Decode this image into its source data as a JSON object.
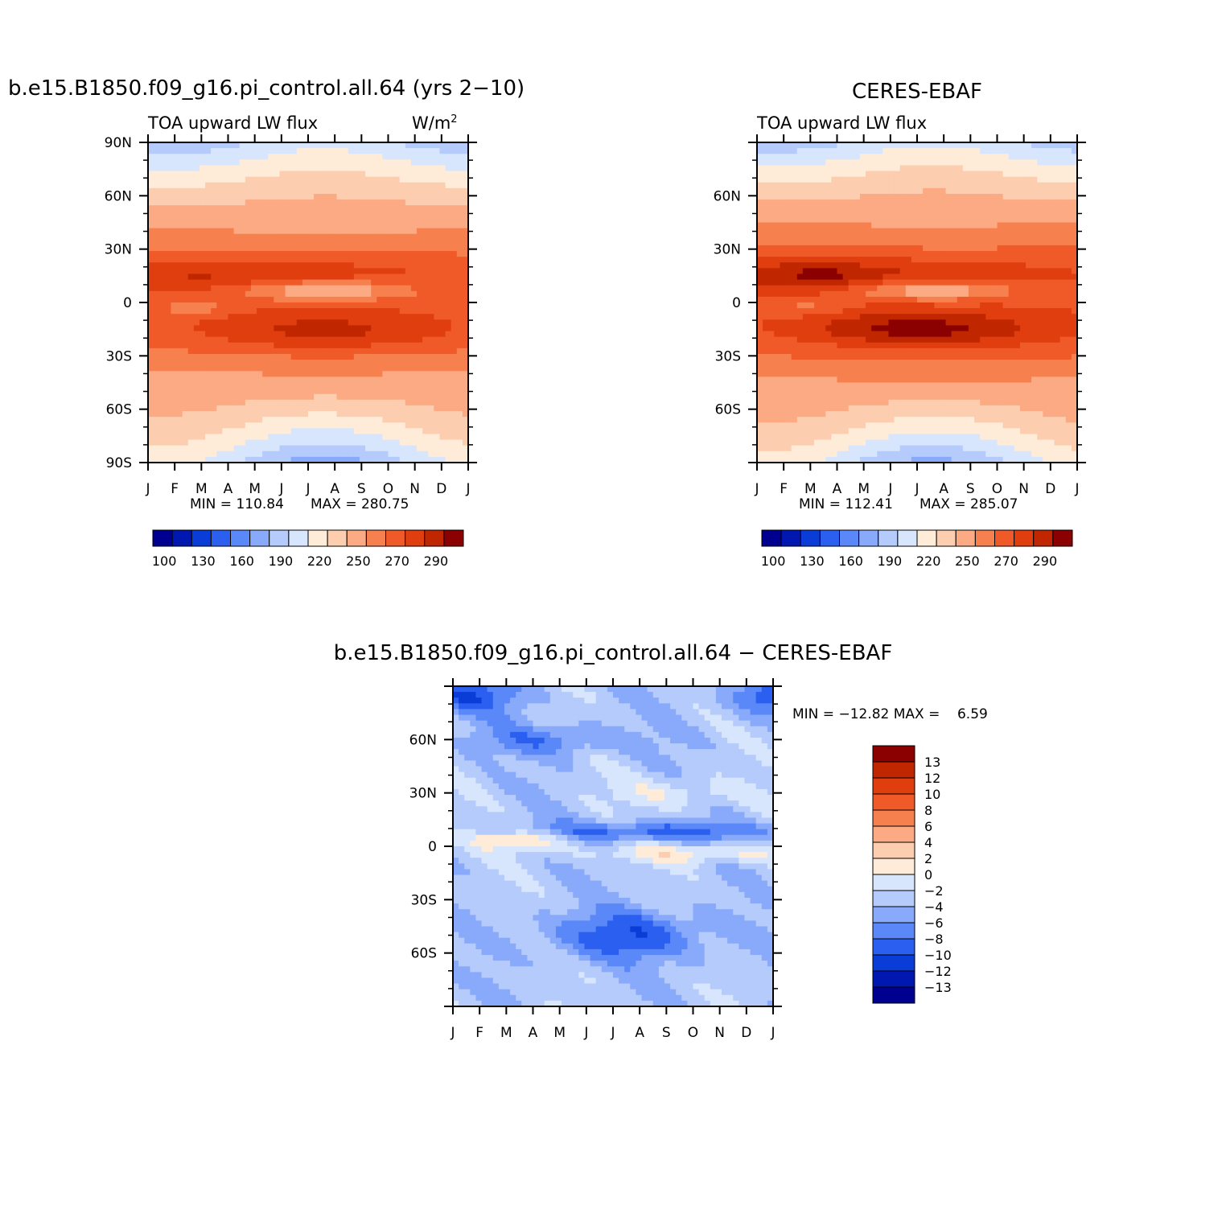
{
  "chart_data": [
    {
      "type": "heatmap",
      "panel": "model",
      "title": "b.e15.B1850.f09_g16.pi_control.all.64 (yrs 2-10)",
      "subtitle_left": "TOA upward LW flux",
      "units": "W/m",
      "units_sup": "2",
      "x_ticks": [
        "J",
        "F",
        "M",
        "A",
        "M",
        "J",
        "J",
        "A",
        "S",
        "O",
        "N",
        "D",
        "J"
      ],
      "y_ticks": [
        "90N",
        "60N",
        "30N",
        "0",
        "30S",
        "60S",
        "90S"
      ],
      "min_label": "MIN = 110.84",
      "max_label": "MAX = 280.75",
      "min": 110.84,
      "max": 280.75,
      "levels": [
        100,
        115,
        130,
        145,
        160,
        175,
        190,
        205,
        220,
        235,
        250,
        260,
        270,
        280,
        290
      ],
      "colorbar_labels": [
        "100",
        "130",
        "160",
        "190",
        "220",
        "250",
        "270",
        "290"
      ]
    },
    {
      "type": "heatmap",
      "panel": "obs",
      "title": "CERES-EBAF",
      "subtitle_left": "TOA upward LW flux",
      "x_ticks": [
        "J",
        "F",
        "M",
        "A",
        "M",
        "J",
        "J",
        "A",
        "S",
        "O",
        "N",
        "D",
        "J"
      ],
      "y_ticks": [
        "",
        "60N",
        "30N",
        "0",
        "30S",
        "60S",
        ""
      ],
      "min_label": "MIN = 112.41",
      "max_label": "MAX = 285.07",
      "min": 112.41,
      "max": 285.07,
      "levels": [
        100,
        115,
        130,
        145,
        160,
        175,
        190,
        205,
        220,
        235,
        250,
        260,
        270,
        280,
        290
      ],
      "colorbar_labels": [
        "100",
        "130",
        "160",
        "190",
        "220",
        "250",
        "270",
        "290"
      ]
    },
    {
      "type": "heatmap",
      "panel": "diff",
      "title": "b.e15.B1850.f09_g16.pi_control.all.64 - CERES-EBAF",
      "x_ticks": [
        "J",
        "F",
        "M",
        "A",
        "M",
        "J",
        "J",
        "A",
        "S",
        "O",
        "N",
        "D",
        "J"
      ],
      "y_ticks": [
        "",
        "60N",
        "30N",
        "0",
        "30S",
        "60S",
        ""
      ],
      "minmax_label": "MIN = -12.82 MAX =    6.59",
      "min": -12.82,
      "max": 6.59,
      "levels": [
        -13,
        -12,
        -10,
        -8,
        -6,
        -4,
        -2,
        0,
        2,
        4,
        6,
        8,
        10,
        12,
        13
      ],
      "colorbar_labels": [
        "13",
        "12",
        "10",
        "8",
        "6",
        "4",
        "2",
        "0",
        "-2",
        "-4",
        "-6",
        "-8",
        "-10",
        "-12",
        "-13"
      ]
    }
  ],
  "colors": {
    "palette": [
      "#000090",
      "#0018b0",
      "#0a3cd8",
      "#2b5ff0",
      "#5a88f8",
      "#89aafa",
      "#b4cbfb",
      "#d8e6fd",
      "#feecd9",
      "#fdcdb0",
      "#fcaa83",
      "#f7804f",
      "#f05a28",
      "#e03e0e",
      "#c02600",
      "#8b0000"
    ],
    "axis": "#000000"
  }
}
